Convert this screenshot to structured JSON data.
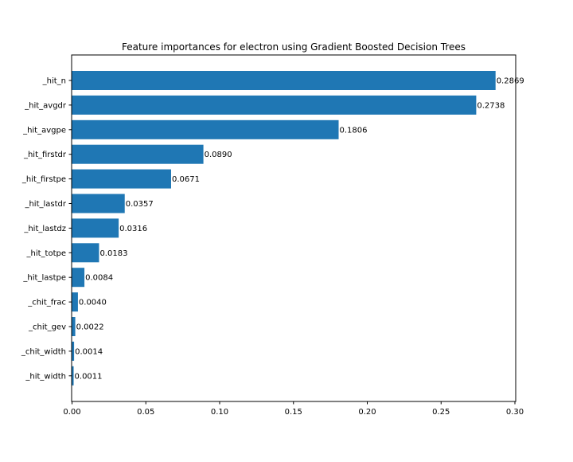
{
  "chart_data": {
    "type": "bar",
    "orientation": "horizontal",
    "title": "Feature importances for electron using Gradient Boosted Decision Trees",
    "xlabel": "",
    "ylabel": "",
    "categories": [
      "_hit_n",
      "_hit_avgdr",
      "_hit_avgpe",
      "_hit_firstdr",
      "_hit_firstpe",
      "_hit_lastdr",
      "_hit_lastdz",
      "_hit_totpe",
      "_hit_lastpe",
      "_chit_frac",
      "_chit_gev",
      "_chit_width",
      "_hit_width"
    ],
    "values": [
      0.2869,
      0.2738,
      0.1806,
      0.089,
      0.0671,
      0.0357,
      0.0316,
      0.0183,
      0.0084,
      0.004,
      0.0022,
      0.0014,
      0.0011
    ],
    "value_labels": [
      "0.2869",
      "0.2738",
      "0.1806",
      "0.0890",
      "0.0671",
      "0.0357",
      "0.0316",
      "0.0183",
      "0.0084",
      "0.0040",
      "0.0022",
      "0.0014",
      "0.0011"
    ],
    "xlim": [
      0,
      0.3
    ],
    "xticks": [
      0,
      0.05,
      0.1,
      0.15,
      0.2,
      0.25,
      0.3
    ],
    "xtick_labels": [
      "0.00",
      "0.05",
      "0.10",
      "0.15",
      "0.20",
      "0.25",
      "0.30"
    ],
    "bar_color": "#1f77b4",
    "grid": false,
    "legend": "none"
  }
}
